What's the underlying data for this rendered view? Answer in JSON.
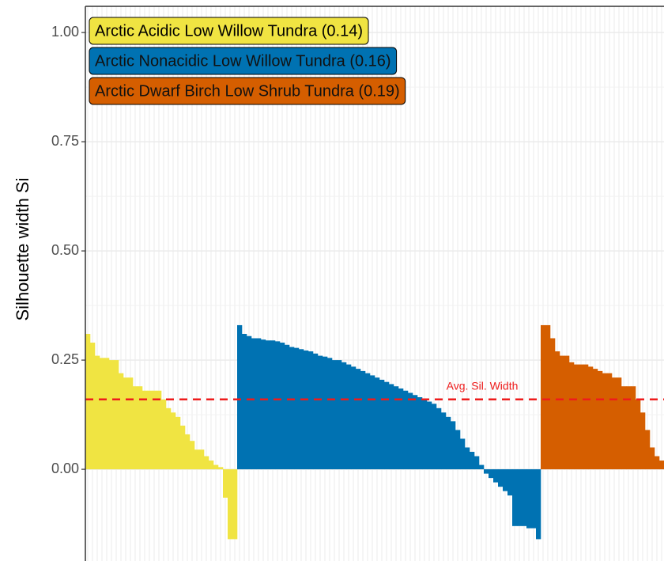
{
  "chart_data": {
    "type": "bar",
    "ylabel": "Silhouette width Si",
    "ylim": [
      -0.21,
      1.06
    ],
    "yticks": [
      {
        "value": 0,
        "label": "0.00"
      },
      {
        "value": 0.25,
        "label": "0.25"
      },
      {
        "value": 0.5,
        "label": "0.50"
      },
      {
        "value": 0.75,
        "label": "0.75"
      },
      {
        "value": 1,
        "label": "1.00"
      }
    ],
    "grid": true,
    "legend": "top-left",
    "average": {
      "label": "Avg. Sil. Width",
      "value": 0.16,
      "color": "#ee1c1c"
    },
    "series": [
      {
        "name": "Arctic Acidic Low Willow Tundra (0.14)",
        "color": "#f0e442",
        "values": [
          0.31,
          0.29,
          0.26,
          0.255,
          0.255,
          0.25,
          0.25,
          0.22,
          0.21,
          0.21,
          0.19,
          0.19,
          0.18,
          0.18,
          0.18,
          0.18,
          0.16,
          0.14,
          0.13,
          0.12,
          0.1,
          0.08,
          0.065,
          0.045,
          0.045,
          0.03,
          0.02,
          0.01,
          0.005,
          -0.065,
          -0.16,
          -0.16
        ]
      },
      {
        "name": "Arctic Nonacidic Low Willow Tundra (0.16)",
        "color": "#0072b2",
        "values": [
          0.33,
          0.31,
          0.305,
          0.3,
          0.3,
          0.297,
          0.295,
          0.295,
          0.293,
          0.29,
          0.285,
          0.28,
          0.278,
          0.275,
          0.272,
          0.27,
          0.265,
          0.26,
          0.258,
          0.255,
          0.25,
          0.25,
          0.245,
          0.24,
          0.235,
          0.23,
          0.225,
          0.22,
          0.215,
          0.21,
          0.205,
          0.2,
          0.195,
          0.19,
          0.185,
          0.18,
          0.175,
          0.17,
          0.165,
          0.16,
          0.155,
          0.15,
          0.14,
          0.13,
          0.12,
          0.11,
          0.09,
          0.07,
          0.05,
          0.04,
          0.03,
          0.01,
          -0.01,
          -0.02,
          -0.03,
          -0.04,
          -0.05,
          -0.06,
          -0.13,
          -0.13,
          -0.13,
          -0.135,
          -0.135,
          -0.16
        ]
      },
      {
        "name": "Arctic Dwarf Birch Low Shrub Tundra (0.19)",
        "color": "#d55e00",
        "values": [
          0.33,
          0.33,
          0.3,
          0.27,
          0.26,
          0.26,
          0.245,
          0.24,
          0.24,
          0.24,
          0.235,
          0.23,
          0.225,
          0.22,
          0.22,
          0.21,
          0.21,
          0.19,
          0.19,
          0.19,
          0.16,
          0.13,
          0.09,
          0.05,
          0.03,
          0.02
        ]
      }
    ]
  }
}
